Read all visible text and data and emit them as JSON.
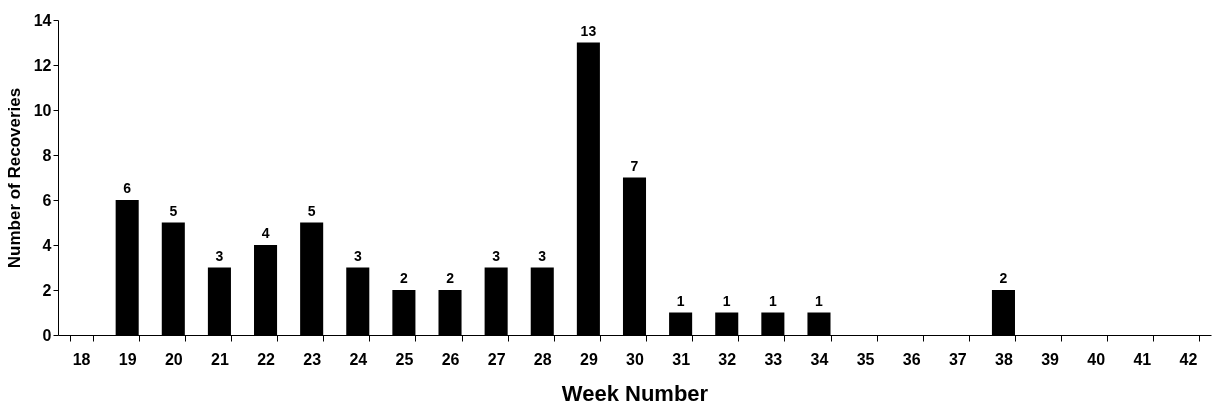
{
  "chart_data": {
    "type": "bar",
    "xlabel": "Week Number",
    "ylabel": "Number of Recoveries",
    "categories": [
      "18",
      "19",
      "20",
      "21",
      "22",
      "23",
      "24",
      "25",
      "26",
      "27",
      "28",
      "29",
      "30",
      "31",
      "32",
      "33",
      "34",
      "35",
      "36",
      "37",
      "38",
      "39",
      "40",
      "41",
      "42"
    ],
    "values": [
      null,
      6,
      5,
      3,
      4,
      5,
      3,
      2,
      2,
      3,
      3,
      13,
      7,
      1,
      1,
      1,
      1,
      null,
      null,
      null,
      2,
      null,
      null,
      null,
      null
    ],
    "color": "#000000",
    "ylim": [
      0,
      14
    ],
    "yticks": [
      0,
      2,
      4,
      6,
      8,
      10,
      12,
      14
    ],
    "grid": false,
    "data_labels": true
  }
}
